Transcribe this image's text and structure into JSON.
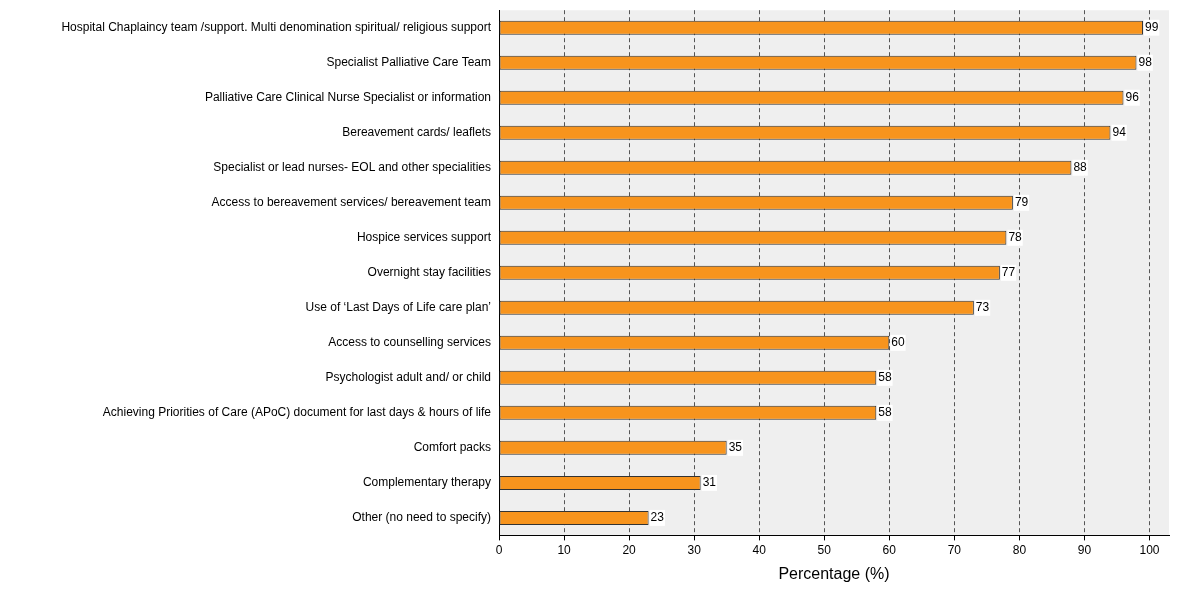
{
  "chart_data": {
    "type": "bar",
    "orientation": "horizontal",
    "xlabel": "Percentage (%)",
    "categories": [
      "Hospital Chaplaincy team /support. Multi denomination spiritual/ religious support",
      "Specialist Palliative Care Team",
      "Palliative Care Clinical Nurse Specialist or information",
      "Bereavement cards/ leaflets",
      "Specialist or lead nurses- EOL and other specialities",
      "Access to bereavement services/ bereavement team",
      "Hospice services support",
      "Overnight stay facilities",
      "Use of ‘Last Days of Life care plan’",
      "Access to counselling services",
      "Psychologist adult and/ or child",
      "Achieving Priorities of Care (APoC) document for last days & hours of life",
      "Comfort packs",
      "Complementary therapy",
      "Other (no need to specify)"
    ],
    "values": [
      99,
      98,
      96,
      94,
      88,
      79,
      78,
      77,
      73,
      60,
      58,
      58,
      35,
      31,
      23
    ],
    "color": "#f7941d",
    "data_labels": true,
    "xlim": [
      0,
      103
    ],
    "xticks": [
      0,
      10,
      20,
      30,
      40,
      50,
      60,
      70,
      80,
      90,
      100
    ],
    "grid": "x",
    "legend": false
  }
}
